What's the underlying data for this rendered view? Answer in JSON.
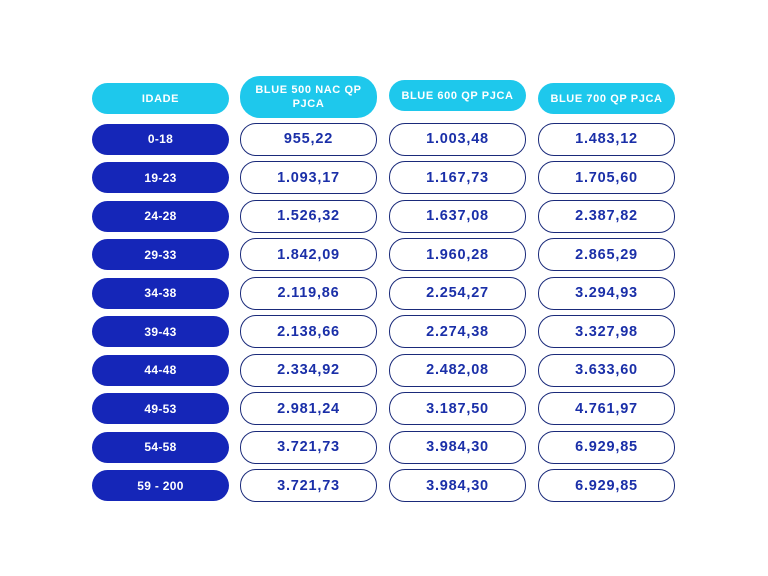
{
  "table": {
    "headers": [
      "IDADE",
      "BLUE 500 NAC QP PJCA",
      "BLUE 600 QP PJCA",
      "BLUE 700 QP PJCA"
    ],
    "rows": [
      {
        "age": "0-18",
        "v1": "955,22",
        "v2": "1.003,48",
        "v3": "1.483,12"
      },
      {
        "age": "19-23",
        "v1": "1.093,17",
        "v2": "1.167,73",
        "v3": "1.705,60"
      },
      {
        "age": "24-28",
        "v1": "1.526,32",
        "v2": "1.637,08",
        "v3": "2.387,82"
      },
      {
        "age": "29-33",
        "v1": "1.842,09",
        "v2": "1.960,28",
        "v3": "2.865,29"
      },
      {
        "age": "34-38",
        "v1": "2.119,86",
        "v2": "2.254,27",
        "v3": "3.294,93"
      },
      {
        "age": "39-43",
        "v1": "2.138,66",
        "v2": "2.274,38",
        "v3": "3.327,98"
      },
      {
        "age": "44-48",
        "v1": "2.334,92",
        "v2": "2.482,08",
        "v3": "3.633,60"
      },
      {
        "age": "49-53",
        "v1": "2.981,24",
        "v2": "3.187,50",
        "v3": "4.761,97"
      },
      {
        "age": "54-58",
        "v1": "3.721,73",
        "v2": "3.984,30",
        "v3": "6.929,85"
      },
      {
        "age": "59 - 200",
        "v1": "3.721,73",
        "v2": "3.984,30",
        "v3": "6.929,85"
      }
    ]
  },
  "colors": {
    "header_bg": "#1ec8ec",
    "age_bg": "#1526b8",
    "value_text": "#1a2fa8",
    "value_border": "#1a2a7a"
  }
}
